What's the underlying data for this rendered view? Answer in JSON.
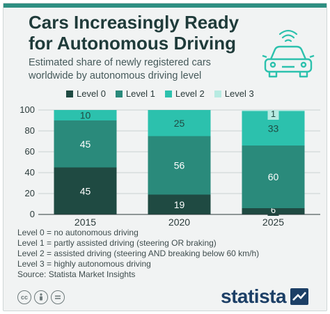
{
  "header": {
    "title": "Cars Increasingly Ready for Autonomous Driving",
    "subtitle": "Estimated share of newly registered cars worldwide by autonomous driving level"
  },
  "colors": {
    "level0": "#1f4a42",
    "level1": "#2a8a7b",
    "level2": "#2cc1ad",
    "level3": "#b7ebe2",
    "title": "#1f3b3a",
    "brand": "#1c3f66"
  },
  "chart_data": {
    "type": "bar",
    "stacked": true,
    "categories": [
      "2015",
      "2020",
      "2025"
    ],
    "series": [
      {
        "name": "Level 0",
        "values": [
          45,
          19,
          6
        ]
      },
      {
        "name": "Level 1",
        "values": [
          45,
          56,
          60
        ]
      },
      {
        "name": "Level 2",
        "values": [
          10,
          25,
          33
        ]
      },
      {
        "name": "Level 3",
        "values": [
          0,
          0,
          1
        ]
      }
    ],
    "ylim": [
      0,
      100
    ],
    "yticks": [
      0,
      20,
      40,
      60,
      80,
      100
    ],
    "grid": true,
    "legend_position": "top"
  },
  "notes": [
    "Level 0 = no autonomous driving",
    "Level 1 = partly assisted driving (steering OR braking)",
    "Level 2 = assisted driving (steering AND breaking below 60 km/h)",
    "Level 3 = highly autonomous driving",
    "Source: Statista Market Insights"
  ],
  "footer": {
    "license_icons": [
      "cc-icon",
      "by-icon",
      "nd-icon"
    ],
    "brand": "statista"
  }
}
